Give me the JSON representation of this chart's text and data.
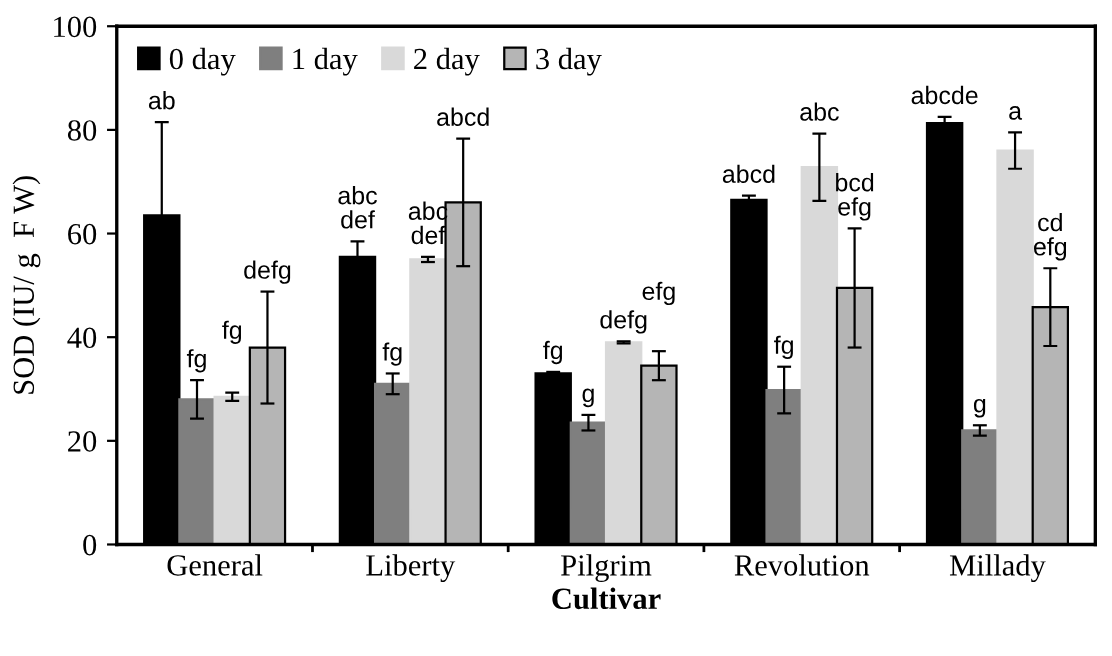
{
  "chart_data": {
    "type": "bar",
    "xlabel": "Cultivar",
    "ylabel": "SOD (IU/ g  F W)",
    "categories": [
      "General",
      "Liberty",
      "Pilgrim",
      "Revolution",
      "Millady"
    ],
    "series": [
      {
        "name": "0 day",
        "color": "#000000",
        "values": [
          63.5,
          55.5,
          33,
          66.5,
          81.3
        ],
        "errors": [
          18,
          3,
          0.3,
          0.8,
          1.2
        ]
      },
      {
        "name": "1 day",
        "color": "#7f7f7f",
        "values": [
          28,
          31,
          23.5,
          29.8,
          22
        ],
        "errors": [
          3.7,
          2,
          1.5,
          4.5,
          1
        ]
      },
      {
        "name": "2 day",
        "color": "#d9d9d9",
        "values": [
          28.5,
          55,
          39,
          72.8,
          76
        ],
        "errors": [
          0.8,
          0.5,
          0.2,
          6.5,
          3.5
        ]
      },
      {
        "name": "3 day",
        "color": "#b5b5b5",
        "values": [
          38,
          66,
          34.5,
          49.5,
          45.8
        ],
        "errors": [
          10.8,
          12.3,
          2.8,
          11.5,
          7.5
        ]
      }
    ],
    "ylim": [
      0,
      100
    ],
    "yticks": [
      0,
      20,
      40,
      60,
      80,
      100
    ],
    "legend": "top left",
    "grid": false,
    "annotations": [
      "ab",
      "fg",
      "fg",
      "defg",
      "abc\ndef",
      "fg",
      "abc\ndef",
      "abcd",
      "fg",
      "g",
      "defg",
      "efg",
      "abcd",
      "fg",
      "abc",
      "bcd\nefg",
      "abcde",
      "g",
      "a",
      "cd\nefg"
    ]
  }
}
